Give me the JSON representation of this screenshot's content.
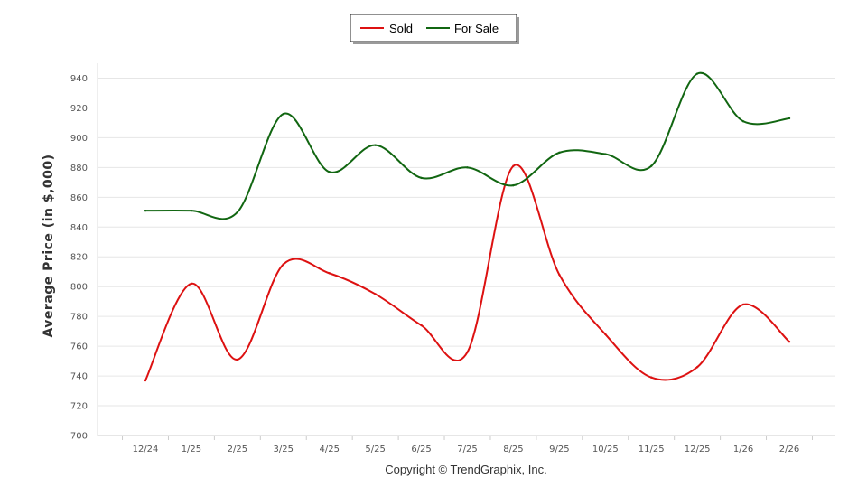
{
  "chart_data": {
    "type": "line",
    "ylabel": "Average Price (in $,000)",
    "xlabel": "",
    "categories": [
      "12/24",
      "1/25",
      "2/25",
      "3/25",
      "4/25",
      "5/25",
      "6/25",
      "7/25",
      "8/25",
      "9/25",
      "10/25",
      "11/25",
      "12/25",
      "1/26",
      "2/26"
    ],
    "y_ticks": [
      700,
      720,
      740,
      760,
      780,
      800,
      820,
      840,
      860,
      880,
      900,
      920,
      940
    ],
    "ylim": [
      700,
      950
    ],
    "grid": true,
    "legend_placement": "top-center",
    "series": [
      {
        "name": "Sold",
        "color": "#dd1111",
        "values": [
          737,
          802,
          751,
          815,
          809,
          795,
          774,
          756,
          881,
          808,
          768,
          739,
          746,
          788,
          763
        ]
      },
      {
        "name": "For Sale",
        "color": "#116611",
        "values": [
          851,
          851,
          850,
          916,
          877,
          895,
          873,
          880,
          868,
          890,
          889,
          881,
          943,
          911,
          913
        ]
      }
    ],
    "copyright": "Copyright © TrendGraphix, Inc."
  }
}
